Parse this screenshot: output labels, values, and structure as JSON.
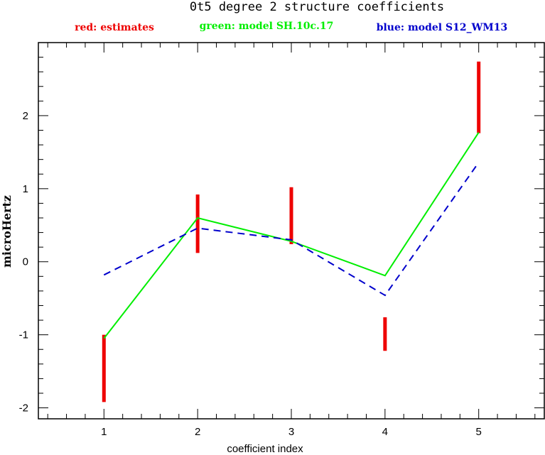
{
  "chart_data": {
    "type": "line",
    "title": "0t5 degree 2 structure coefficients",
    "xlabel": "coefficient index",
    "ylabel": "microHertz",
    "xlim": [
      0.3,
      5.7
    ],
    "ylim": [
      -2.15,
      3.0
    ],
    "x_ticks": [
      1,
      2,
      3,
      4,
      5
    ],
    "x_tick_labels": [
      "1",
      "2",
      "3",
      "4",
      "5"
    ],
    "y_ticks": [
      -2,
      -1,
      0,
      1,
      2
    ],
    "y_tick_labels": [
      "-2",
      "-1",
      "0",
      "1",
      "2"
    ],
    "legend": [
      {
        "label": "red: estimates",
        "color": "#ee0000"
      },
      {
        "label": "green: model SH.10c.17",
        "color": "#00ee00"
      },
      {
        "label": "blue: model S12_WM13",
        "color": "#0000cc"
      }
    ],
    "series": [
      {
        "style": "error-bars",
        "color": "#ee0000",
        "x": [
          1,
          2,
          3,
          4,
          5
        ],
        "low": [
          -1.92,
          0.12,
          0.24,
          -1.22,
          1.76
        ],
        "high": [
          -1.0,
          0.92,
          1.02,
          -0.76,
          2.74
        ]
      },
      {
        "style": "solid-line",
        "color": "#00ee00",
        "x": [
          1,
          2,
          3,
          4,
          5
        ],
        "values": [
          -1.05,
          0.6,
          0.28,
          -0.19,
          1.77
        ]
      },
      {
        "style": "dashed-line",
        "color": "#0000cc",
        "x": [
          1,
          2,
          3,
          4,
          5
        ],
        "values": [
          -0.18,
          0.46,
          0.3,
          -0.46,
          1.36
        ]
      }
    ],
    "grid": false
  }
}
